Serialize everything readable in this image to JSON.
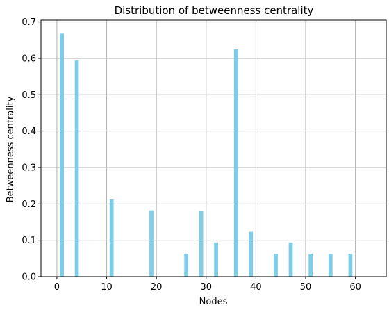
{
  "chart_data": {
    "type": "bar",
    "title": "Distribution of betweenness centrality",
    "xlabel": "Nodes",
    "ylabel": "Betweenness centrality",
    "xlim": [
      -3.2,
      66.2
    ],
    "ylim": [
      0,
      0.705
    ],
    "xticks": [
      0,
      10,
      20,
      30,
      40,
      50,
      60
    ],
    "yticks": [
      0.0,
      0.1,
      0.2,
      0.3,
      0.4,
      0.5,
      0.6,
      0.7
    ],
    "ytick_labels": [
      "0.0",
      "0.1",
      "0.2",
      "0.3",
      "0.4",
      "0.5",
      "0.6",
      "0.7"
    ],
    "grid": true,
    "bar_color": "#7ecde6",
    "bar_width": 0.8,
    "x": [
      1,
      4,
      11,
      19,
      26,
      29,
      32,
      36,
      39,
      44,
      47,
      51,
      55,
      59
    ],
    "values": [
      0.668,
      0.594,
      0.212,
      0.182,
      0.063,
      0.18,
      0.094,
      0.625,
      0.123,
      0.063,
      0.094,
      0.063,
      0.063,
      0.063
    ]
  }
}
